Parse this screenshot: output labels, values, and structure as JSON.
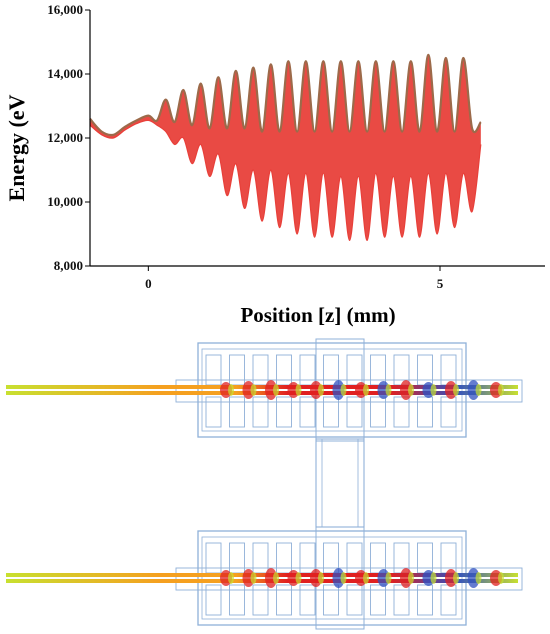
{
  "chart_data": {
    "type": "line",
    "xlabel": "Position [z] (mm)",
    "ylabel": "Energy (eV",
    "xlim": [
      -1.0,
      6.8
    ],
    "ylim": [
      8000,
      16000
    ],
    "xticks": [
      0,
      5
    ],
    "xtick_labels": [
      "0",
      "5"
    ],
    "yticks": [
      8000,
      10000,
      12000,
      14000,
      16000
    ],
    "ytick_labels": [
      "8,000",
      "10,000",
      "12,000",
      "14,000",
      "16,000"
    ],
    "grid": false,
    "legend": "none",
    "series": [
      {
        "color_upper": "#9c6a4a",
        "color_fill": "#e8403a",
        "x": [
          -1.0,
          -0.8,
          -0.6,
          -0.4,
          -0.2,
          0.0,
          0.15,
          0.3,
          0.45,
          0.6,
          0.75,
          0.9,
          1.05,
          1.2,
          1.35,
          1.5,
          1.65,
          1.8,
          1.95,
          2.1,
          2.25,
          2.4,
          2.55,
          2.7,
          2.85,
          3.0,
          3.15,
          3.3,
          3.45,
          3.6,
          3.75,
          3.9,
          4.05,
          4.2,
          4.35,
          4.5,
          4.65,
          4.8,
          4.95,
          5.1,
          5.25,
          5.4,
          5.55,
          5.7
        ],
        "upper": [
          12600,
          12200,
          12100,
          12350,
          12550,
          12700,
          12550,
          13200,
          12500,
          13500,
          12400,
          13700,
          12300,
          13900,
          12300,
          14100,
          12300,
          14200,
          12200,
          14300,
          12200,
          14400,
          12200,
          14400,
          12200,
          14400,
          12200,
          14400,
          12200,
          14400,
          12200,
          14400,
          12200,
          14400,
          12200,
          14400,
          12200,
          14600,
          12200,
          14500,
          12200,
          14500,
          12300,
          12500
        ],
        "lower": [
          12400,
          12100,
          12000,
          12250,
          12450,
          12550,
          12400,
          12200,
          11800,
          12000,
          11200,
          11800,
          10800,
          11500,
          10200,
          11200,
          9800,
          11000,
          9400,
          11000,
          9200,
          10900,
          9000,
          10900,
          8900,
          10900,
          8900,
          10800,
          8800,
          10800,
          8800,
          10900,
          8900,
          10800,
          8900,
          10800,
          8900,
          10900,
          9000,
          10900,
          9200,
          10900,
          9700,
          11800
        ]
      }
    ]
  },
  "simulation": {
    "panels": [
      "top",
      "bottom"
    ],
    "colors": {
      "frame": "#8fb0d8",
      "beam_start": "#c8e030",
      "beam_mid": "#f5a020",
      "beam_hot": "#e02020",
      "beam_cool": "#3050c0"
    }
  }
}
